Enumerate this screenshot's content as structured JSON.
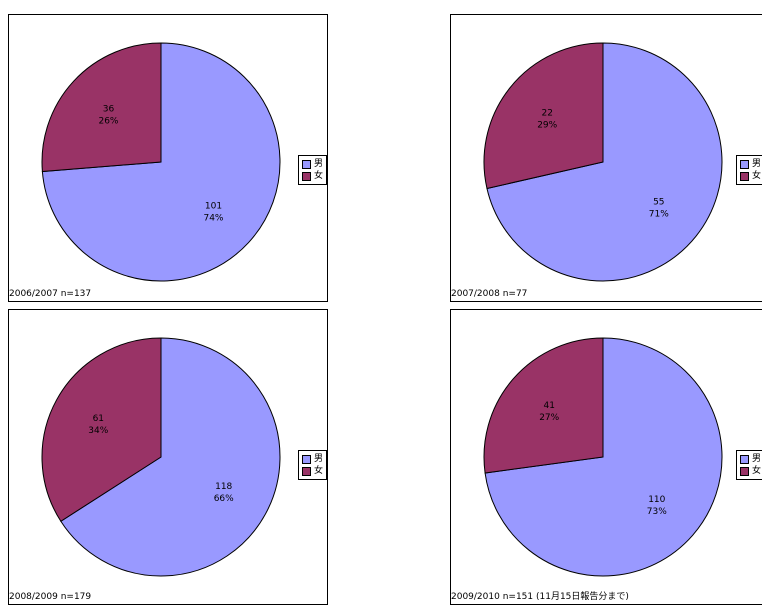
{
  "page": {
    "title": ""
  },
  "colors": {
    "male": "#9999ff",
    "female": "#993366"
  },
  "chart_data": [
    {
      "type": "pie",
      "caption": "2006/2007 n=137",
      "slices": [
        {
          "name": "男",
          "value": 101,
          "label": "101",
          "percent": "74%"
        },
        {
          "name": "女",
          "value": 36,
          "label": "36",
          "percent": "26%"
        }
      ],
      "legend": {
        "position": "right",
        "entries": [
          "男",
          "女"
        ]
      }
    },
    {
      "type": "pie",
      "caption": "2007/2008 n=77",
      "slices": [
        {
          "name": "男",
          "value": 55,
          "label": "55",
          "percent": "71%"
        },
        {
          "name": "女",
          "value": 22,
          "label": "22",
          "percent": "29%"
        }
      ],
      "legend": {
        "position": "right",
        "entries": [
          "男",
          "女"
        ]
      }
    },
    {
      "type": "pie",
      "caption": "2008/2009 n=179",
      "slices": [
        {
          "name": "男",
          "value": 118,
          "label": "118",
          "percent": "66%"
        },
        {
          "name": "女",
          "value": 61,
          "label": "61",
          "percent": "34%"
        }
      ],
      "legend": {
        "position": "right",
        "entries": [
          "男",
          "女"
        ]
      }
    },
    {
      "type": "pie",
      "caption": "2009/2010 n=151 (11月15日報告分まで)",
      "slices": [
        {
          "name": "男",
          "value": 110,
          "label": "110",
          "percent": "73%"
        },
        {
          "name": "女",
          "value": 41,
          "label": "41",
          "percent": "27%"
        }
      ],
      "legend": {
        "position": "right",
        "entries": [
          "男",
          "女"
        ]
      }
    }
  ]
}
